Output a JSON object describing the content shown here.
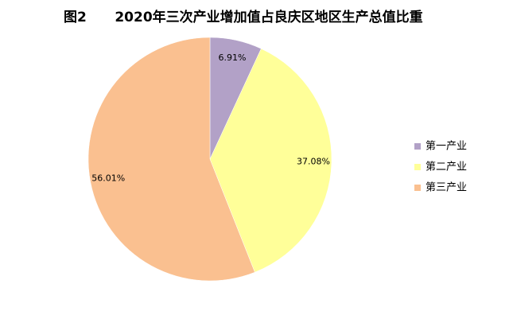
{
  "chart_data": {
    "type": "pie",
    "title": "图2      2020年三次产业增加值占良庆区地区生产总值比重",
    "categories": [
      "第一产业",
      "第二产业",
      "第三产业"
    ],
    "values": [
      6.91,
      37.08,
      56.01
    ],
    "value_labels": [
      "6.91%",
      "37.08%",
      "56.01%"
    ],
    "colors": [
      "#b2a1c7",
      "#ffff99",
      "#fac090"
    ],
    "legend": "right"
  }
}
